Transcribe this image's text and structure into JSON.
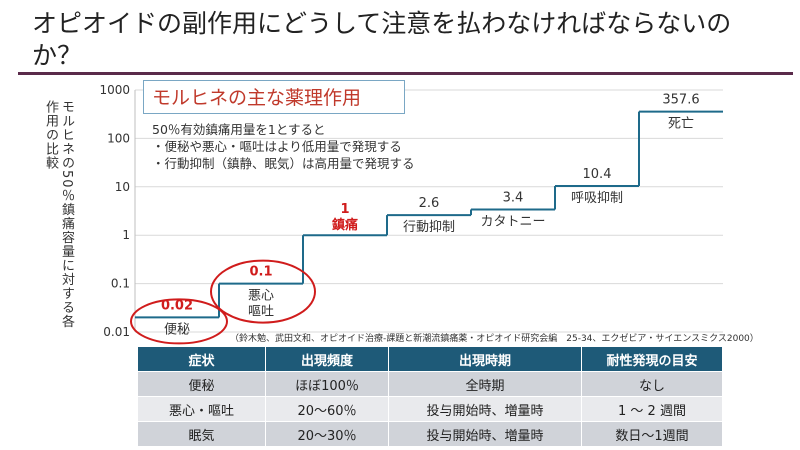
{
  "slide": {
    "title": "オピオイドの副作用にどうして注意を払わなければならないのか？",
    "box_title": "モルヒネの主な薬理作用",
    "notes": [
      "50％有効鎮痛用量を1とすると",
      "・便秘や悪心・嘔吐はより低用量で発現する",
      "・行動抑制（鎮静、眠気）は高用量で発現する"
    ],
    "source": "（鈴木勉、武田文和、オピオイド治療-課題と新潮流鎮痛薬・オピオイド研究会編　25-34、エクゼビア・サイエンスミクス2000）",
    "highlight_color": "#d01c1c",
    "line_color": "#1e6a8a",
    "header_color": "#1e5a78"
  },
  "chart_data": {
    "type": "line",
    "step": true,
    "ylabel": "モルヒネの50％鎮痛容量に対する各作用の比較",
    "yscale": "log",
    "ylim": [
      0.01,
      1000
    ],
    "yticks": [
      "1000",
      "100",
      "10",
      "1",
      "0.1",
      "0.01"
    ],
    "grid": true,
    "points": [
      {
        "value": 0.02,
        "value_label": "0.02",
        "label": "便秘",
        "highlight": true
      },
      {
        "value": 0.1,
        "value_label": "0.1",
        "label": "悪心\n嘔吐",
        "highlight": true
      },
      {
        "value": 1,
        "value_label": "1",
        "label": "鎮痛",
        "highlight": true
      },
      {
        "value": 2.6,
        "value_label": "2.6",
        "label": "行動抑制",
        "highlight": false
      },
      {
        "value": 3.4,
        "value_label": "3.4",
        "label": "カタトニー",
        "highlight": false
      },
      {
        "value": 10.4,
        "value_label": "10.4",
        "label": "呼吸抑制",
        "highlight": false
      },
      {
        "value": 357.6,
        "value_label": "357.6",
        "label": "死亡",
        "highlight": false
      }
    ]
  },
  "table": {
    "headers": [
      "症状",
      "出現頻度",
      "出現時期",
      "耐性発現の目安"
    ],
    "rows": [
      [
        "便秘",
        "ほぼ100％",
        "全時期",
        "なし"
      ],
      [
        "悪心・嘔吐",
        "20〜60％",
        "投与開始時、増量時",
        "1 〜 2 週間"
      ],
      [
        "眠気",
        "20〜30％",
        "投与開始時、増量時",
        "数日〜1週間"
      ]
    ]
  }
}
